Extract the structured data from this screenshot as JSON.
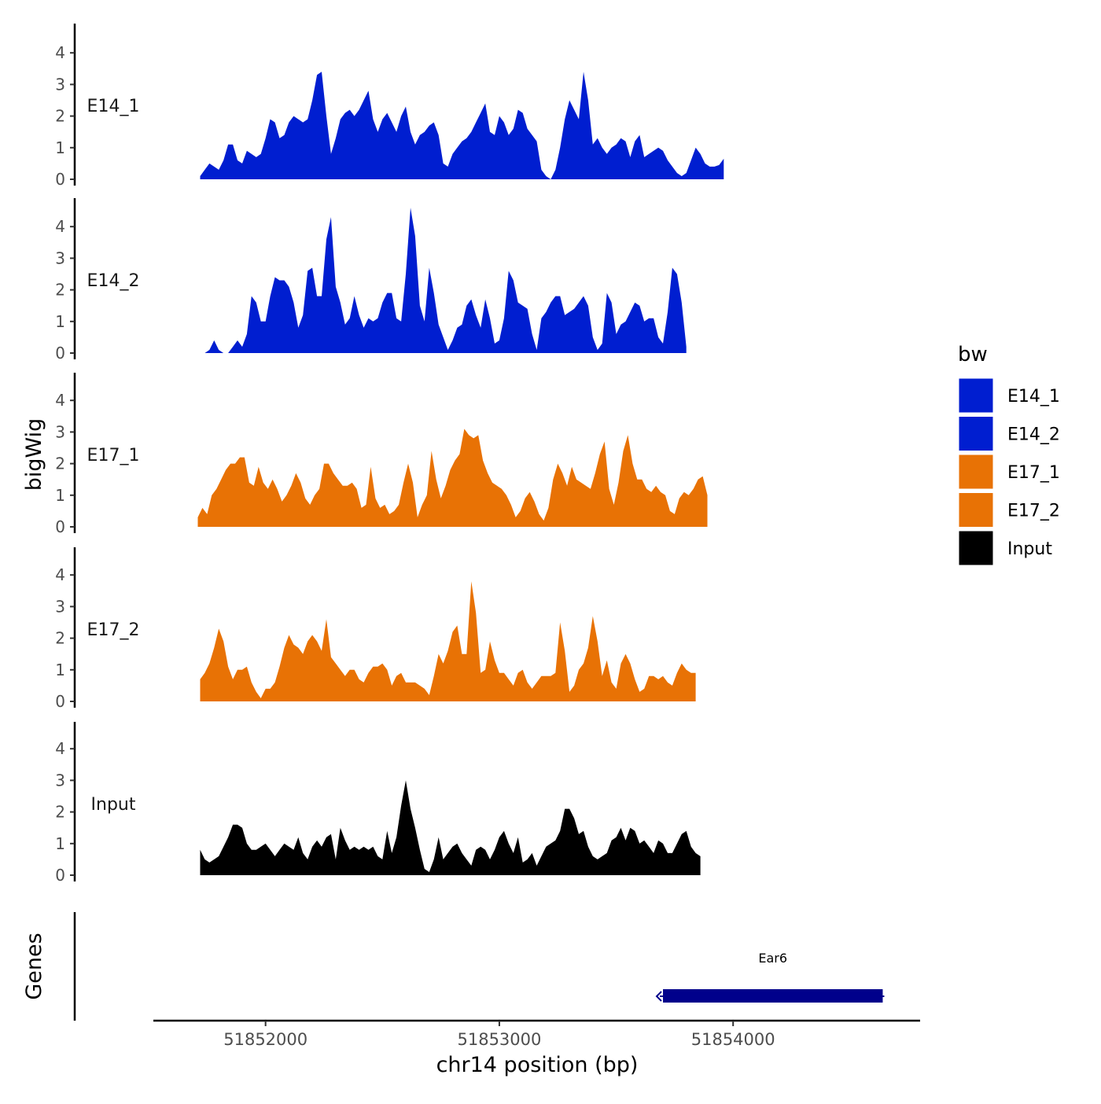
{
  "chart_data": {
    "type": "area",
    "title": "",
    "ylabel": "bigWig",
    "xlabel": "chr14 position (bp)",
    "ylim": [
      0,
      4.9
    ],
    "xlim": [
      51851520,
      51854800
    ],
    "y_ticks": [
      "0",
      "1",
      "2",
      "3",
      "4"
    ],
    "x_ticks": [
      {
        "value": 51852000,
        "label": "51852000"
      },
      {
        "value": 51853000,
        "label": "51853000"
      },
      {
        "value": 51854000,
        "label": "51854000"
      }
    ],
    "legend": {
      "title": "bw",
      "placement": "right",
      "entries": [
        {
          "name": "E14_1",
          "color": "#001ed0"
        },
        {
          "name": "E14_2",
          "color": "#001ed0"
        },
        {
          "name": "E17_1",
          "color": "#e87205"
        },
        {
          "name": "E17_2",
          "color": "#e87205"
        },
        {
          "name": "Input",
          "color": "#000000"
        }
      ]
    },
    "series": [
      {
        "name": "E14_1",
        "color": "#001ed0",
        "x0": 51851720,
        "step": 20,
        "values": [
          0.1,
          0.3,
          0.5,
          0.4,
          0.3,
          0.6,
          1.1,
          1.1,
          0.6,
          0.5,
          0.9,
          0.8,
          0.7,
          0.8,
          1.3,
          1.9,
          1.8,
          1.3,
          1.4,
          1.8,
          2.0,
          1.9,
          1.8,
          1.9,
          2.5,
          3.3,
          3.4,
          2.0,
          0.8,
          1.3,
          1.9,
          2.1,
          2.2,
          2.0,
          2.2,
          2.5,
          2.8,
          1.9,
          1.5,
          1.9,
          2.1,
          1.8,
          1.5,
          2.0,
          2.3,
          1.5,
          1.1,
          1.4,
          1.5,
          1.7,
          1.8,
          1.4,
          0.5,
          0.4,
          0.8,
          1.0,
          1.2,
          1.3,
          1.5,
          1.8,
          2.1,
          2.4,
          1.5,
          1.4,
          2.0,
          1.8,
          1.4,
          1.6,
          2.2,
          2.1,
          1.6,
          1.4,
          1.2,
          0.3,
          0.1,
          0.0,
          0.3,
          1.0,
          1.9,
          2.5,
          2.2,
          1.9,
          3.4,
          2.5,
          1.1,
          1.3,
          1.0,
          0.8,
          1.0,
          1.1,
          1.3,
          1.2,
          0.7,
          1.2,
          1.4,
          0.7,
          0.8,
          0.9,
          1.0,
          0.9,
          0.6,
          0.4,
          0.2,
          0.1,
          0.2,
          0.6,
          1.0,
          0.8,
          0.5,
          0.4,
          0.4,
          0.45,
          0.65
        ]
      },
      {
        "name": "E14_2",
        "color": "#001ed0",
        "x0": 51851720,
        "step": 20,
        "values": [
          0.0,
          0.0,
          0.1,
          0.4,
          0.1,
          0.0,
          0.0,
          0.2,
          0.4,
          0.2,
          0.6,
          1.8,
          1.6,
          1.0,
          1.0,
          1.8,
          2.4,
          2.3,
          2.3,
          2.1,
          1.6,
          0.8,
          1.2,
          2.6,
          2.7,
          1.8,
          1.8,
          3.6,
          4.3,
          2.1,
          1.6,
          0.9,
          1.1,
          1.8,
          1.2,
          0.8,
          1.1,
          1.0,
          1.1,
          1.6,
          1.9,
          1.9,
          1.1,
          1.0,
          2.5,
          4.6,
          3.7,
          1.5,
          1.0,
          2.7,
          1.9,
          0.9,
          0.5,
          0.1,
          0.4,
          0.8,
          0.9,
          1.5,
          1.7,
          1.2,
          0.8,
          1.7,
          1.1,
          0.3,
          0.4,
          1.1,
          2.6,
          2.3,
          1.6,
          1.5,
          1.4,
          0.6,
          0.1,
          1.1,
          1.3,
          1.6,
          1.8,
          1.8,
          1.2,
          1.3,
          1.4,
          1.6,
          1.8,
          1.5,
          0.5,
          0.1,
          0.3,
          1.9,
          1.6,
          0.6,
          0.9,
          1.0,
          1.3,
          1.6,
          1.5,
          1.0,
          1.1,
          1.1,
          0.5,
          0.3,
          1.3,
          2.7,
          2.5,
          1.6,
          0.2
        ]
      },
      {
        "name": "E17_1",
        "color": "#e87205",
        "x0": 51851710,
        "step": 20,
        "values": [
          0.3,
          0.6,
          0.4,
          1.0,
          1.2,
          1.5,
          1.8,
          2.0,
          2.0,
          2.2,
          2.2,
          1.4,
          1.3,
          1.9,
          1.4,
          1.2,
          1.5,
          1.2,
          0.8,
          1.0,
          1.3,
          1.7,
          1.4,
          0.9,
          0.7,
          1.0,
          1.2,
          2.0,
          2.0,
          1.7,
          1.5,
          1.3,
          1.3,
          1.4,
          1.2,
          0.6,
          0.7,
          1.9,
          0.9,
          0.6,
          0.7,
          0.4,
          0.5,
          0.7,
          1.4,
          2.0,
          1.4,
          0.3,
          0.7,
          1.0,
          2.4,
          1.5,
          0.9,
          1.3,
          1.8,
          2.1,
          2.3,
          3.1,
          2.9,
          2.8,
          2.9,
          2.1,
          1.7,
          1.4,
          1.3,
          1.2,
          1.0,
          0.7,
          0.3,
          0.5,
          0.9,
          1.1,
          0.8,
          0.4,
          0.2,
          0.6,
          1.5,
          2.0,
          1.7,
          1.3,
          1.9,
          1.5,
          1.4,
          1.3,
          1.2,
          1.7,
          2.3,
          2.7,
          1.2,
          0.7,
          1.4,
          2.4,
          2.9,
          2.0,
          1.5,
          1.5,
          1.2,
          1.1,
          1.3,
          1.1,
          1.0,
          0.5,
          0.4,
          0.9,
          1.1,
          1.0,
          1.2,
          1.5,
          1.6,
          1.0
        ]
      },
      {
        "name": "E17_2",
        "color": "#e87205",
        "x0": 51851720,
        "step": 20,
        "values": [
          0.7,
          0.9,
          1.2,
          1.7,
          2.3,
          1.9,
          1.1,
          0.7,
          1.0,
          1.0,
          1.1,
          0.6,
          0.3,
          0.1,
          0.4,
          0.4,
          0.6,
          1.1,
          1.7,
          2.1,
          1.8,
          1.7,
          1.5,
          1.9,
          2.1,
          1.9,
          1.6,
          2.6,
          1.4,
          1.2,
          1.0,
          0.8,
          1.0,
          1.0,
          0.7,
          0.6,
          0.9,
          1.1,
          1.1,
          1.2,
          1.0,
          0.5,
          0.8,
          0.9,
          0.6,
          0.6,
          0.6,
          0.5,
          0.4,
          0.2,
          0.8,
          1.5,
          1.2,
          1.6,
          2.2,
          2.4,
          1.5,
          1.5,
          3.8,
          2.8,
          0.9,
          1.0,
          1.9,
          1.3,
          0.9,
          0.9,
          0.7,
          0.5,
          0.9,
          1.0,
          0.6,
          0.4,
          0.6,
          0.8,
          0.8,
          0.8,
          0.9,
          2.5,
          1.6,
          0.3,
          0.5,
          1.0,
          1.2,
          1.7,
          2.7,
          1.9,
          0.8,
          1.3,
          0.6,
          0.4,
          1.2,
          1.5,
          1.2,
          0.7,
          0.3,
          0.4,
          0.8,
          0.8,
          0.7,
          0.8,
          0.6,
          0.5,
          0.9,
          1.2,
          1.0,
          0.9,
          0.9
        ]
      },
      {
        "name": "Input",
        "color": "#000000",
        "x0": 51851720,
        "step": 20,
        "values": [
          0.8,
          0.5,
          0.4,
          0.5,
          0.6,
          0.9,
          1.2,
          1.6,
          1.6,
          1.5,
          1.0,
          0.8,
          0.8,
          0.9,
          1.0,
          0.8,
          0.6,
          0.8,
          1.0,
          0.9,
          0.8,
          1.2,
          0.7,
          0.5,
          0.9,
          1.1,
          0.9,
          1.2,
          1.3,
          0.5,
          1.5,
          1.1,
          0.8,
          0.9,
          0.8,
          0.9,
          0.8,
          0.9,
          0.6,
          0.5,
          1.4,
          0.7,
          1.2,
          2.2,
          3.0,
          2.1,
          1.5,
          0.8,
          0.2,
          0.1,
          0.5,
          1.2,
          0.5,
          0.7,
          0.9,
          1.0,
          0.7,
          0.5,
          0.3,
          0.8,
          0.9,
          0.8,
          0.5,
          0.8,
          1.2,
          1.4,
          1.0,
          0.7,
          1.2,
          0.4,
          0.5,
          0.7,
          0.3,
          0.6,
          0.9,
          1.0,
          1.1,
          1.4,
          2.1,
          2.1,
          1.8,
          1.3,
          1.4,
          0.9,
          0.6,
          0.5,
          0.6,
          0.7,
          1.1,
          1.2,
          1.5,
          1.1,
          1.5,
          1.4,
          1.0,
          1.1,
          0.9,
          0.7,
          1.1,
          1.0,
          0.7,
          0.7,
          1.0,
          1.3,
          1.4,
          0.9,
          0.7,
          0.6
        ]
      }
    ],
    "gene_track": {
      "label": "Genes",
      "genes": [
        {
          "name": "Ear6",
          "start": 51853700,
          "end": 51854640,
          "strand": "-",
          "color": "#00008b"
        }
      ]
    }
  }
}
